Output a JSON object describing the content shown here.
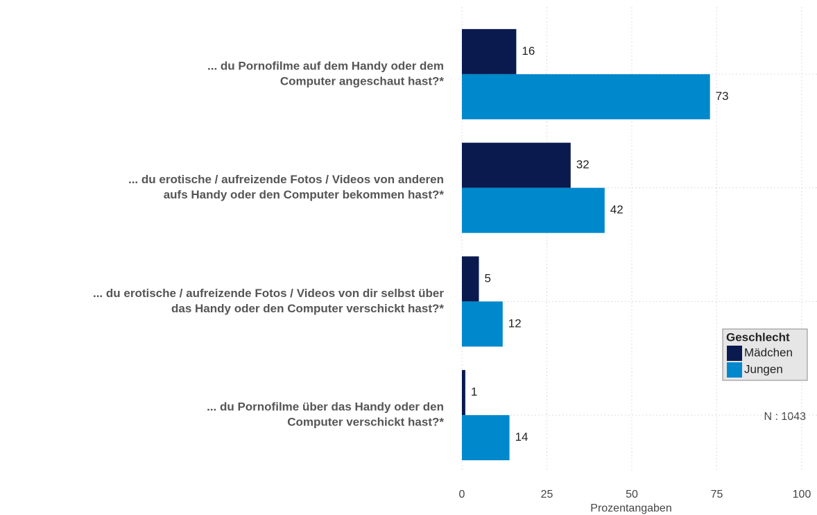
{
  "chart_data": {
    "type": "hbar",
    "categories": [
      [
        "... du Pornofilme auf dem Handy oder dem",
        "Computer angeschaut hast?*"
      ],
      [
        "... du erotische / aufreizende Fotos / Videos von anderen",
        "aufs Handy oder den Computer bekommen hast?*"
      ],
      [
        "... du erotische / aufreizende Fotos / Videos von dir selbst über",
        "das Handy oder den Computer verschickt hast?*"
      ],
      [
        "... du Pornofilme über das Handy oder den",
        "Computer verschickt hast?*"
      ]
    ],
    "series": [
      {
        "name": "Mädchen",
        "color": "#0b1a4e",
        "values": [
          16,
          32,
          5,
          1
        ]
      },
      {
        "name": "Jungen",
        "color": "#0088cc",
        "values": [
          73,
          42,
          12,
          14
        ]
      }
    ],
    "xlim": [
      0,
      100
    ],
    "xticks": [
      0,
      25,
      50,
      75,
      100
    ],
    "xlabel": "Prozentangaben",
    "legend_title": "Geschlecht",
    "annotation": "N : 1043",
    "grid": true
  }
}
